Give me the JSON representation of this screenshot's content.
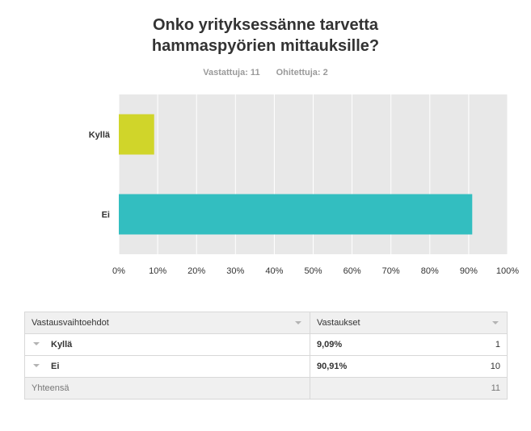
{
  "title_lines": [
    "Onko yrityksessänne tarvetta",
    "hammaspyörien mittauksille?"
  ],
  "answered": "Vastattuja: 11",
  "skipped": "Ohitettuja: 2",
  "chart_data": {
    "type": "bar",
    "orientation": "horizontal",
    "categories": [
      "Kyllä",
      "Ei"
    ],
    "values": [
      9.09,
      90.91
    ],
    "colors": [
      "#d0d52a",
      "#33bec0"
    ],
    "xlim": [
      0,
      100
    ],
    "x_ticks": [
      "0%",
      "10%",
      "20%",
      "30%",
      "40%",
      "50%",
      "60%",
      "70%",
      "80%",
      "90%",
      "100%"
    ],
    "grid": true
  },
  "table": {
    "headers": [
      "Vastausvaihtoehdot",
      "Vastaukset"
    ],
    "rows": [
      {
        "label": "Kyllä",
        "percent": "9,09%",
        "count": "1"
      },
      {
        "label": "Ei",
        "percent": "90,91%",
        "count": "10"
      }
    ],
    "total_label": "Yhteensä",
    "total_count": "11"
  },
  "colors": {
    "plot_bg": "#e8e8e8",
    "grid": "#ffffff"
  }
}
